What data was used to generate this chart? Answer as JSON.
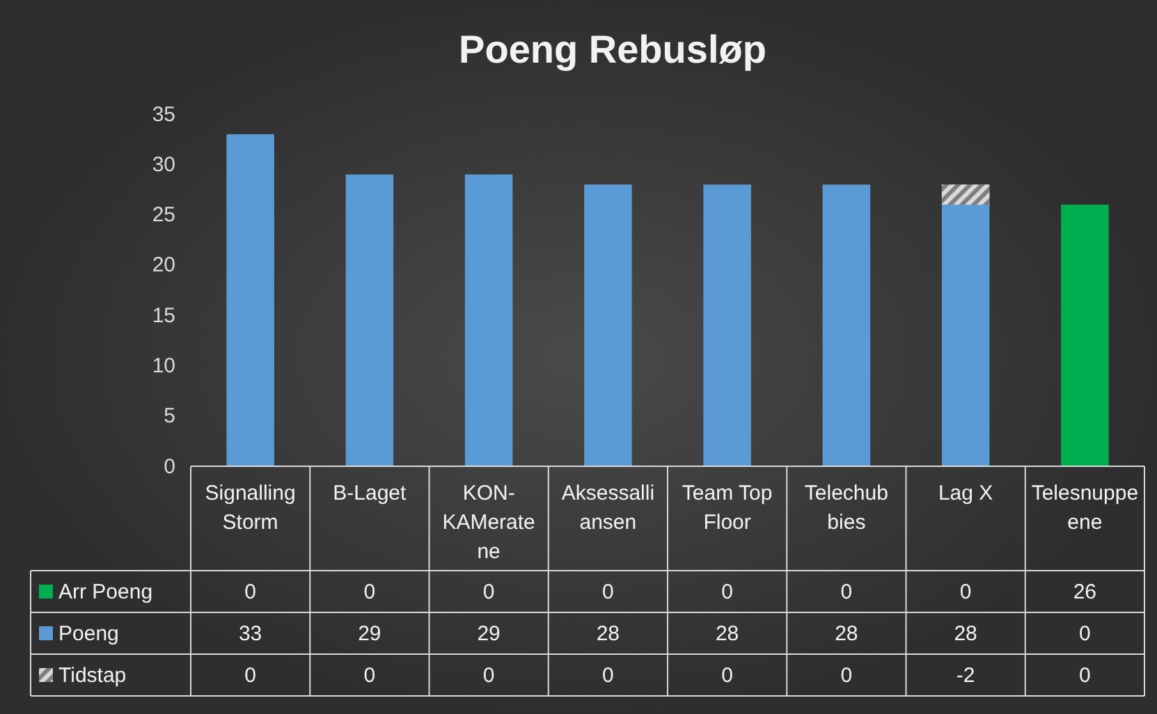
{
  "chart_data": {
    "type": "bar",
    "title": "Poeng Rebusløp",
    "data_labels": true,
    "legend": "bottom",
    "grid": false,
    "categories": [
      "Signalling Storm",
      "B-Laget",
      "KON-KAMerate ne",
      "Aksessalli ansen",
      "Team Top Floor",
      "Telechub bies",
      "Lag X",
      "Telesnuppe ene"
    ],
    "series": [
      {
        "name": "Arr Poeng",
        "color": "#00b050",
        "values": [
          0,
          0,
          0,
          0,
          0,
          0,
          0,
          26
        ]
      },
      {
        "name": "Poeng",
        "color": "#5b9bd5",
        "values": [
          33,
          29,
          29,
          28,
          28,
          28,
          28,
          0
        ]
      },
      {
        "name": "Tidstap",
        "color": "#d9d9d9",
        "values": [
          0,
          0,
          0,
          0,
          0,
          0,
          -2,
          0
        ],
        "base": [
          null,
          null,
          null,
          null,
          null,
          null,
          28,
          null
        ]
      }
    ],
    "ylim": [
      0,
      35
    ],
    "yticks": [
      0,
      5,
      10,
      15,
      20,
      25,
      30,
      35
    ]
  }
}
